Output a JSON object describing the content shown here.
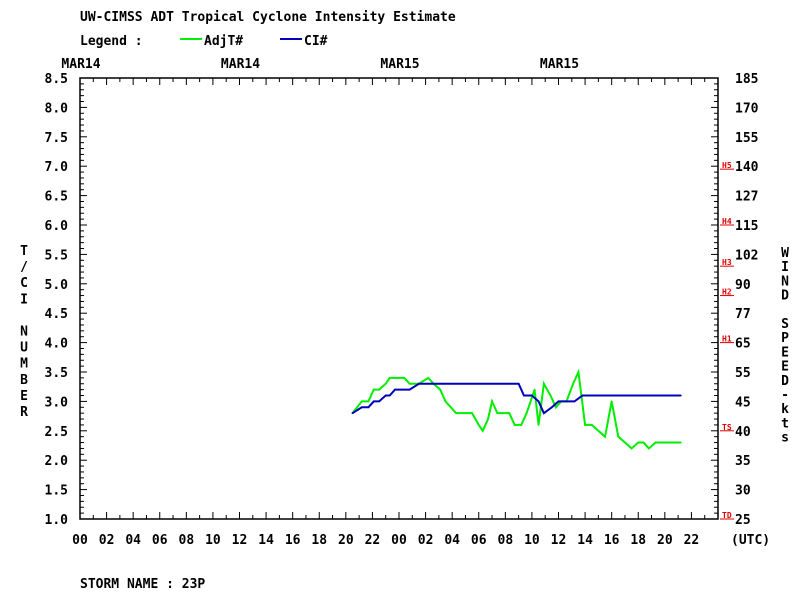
{
  "header": {
    "title": "UW-CIMSS ADT Tropical Cyclone Intensity Estimate",
    "legend_label": "Legend :",
    "storm_name": "STORM NAME : 23P"
  },
  "colors": {
    "adjt": "#00ee00",
    "ci": "#0000bb",
    "scale_marker": "#dd0000",
    "axis": "#000000"
  },
  "chart_data": {
    "type": "line",
    "title": "UW-CIMSS ADT Tropical Cyclone Intensity Estimate",
    "date_labels": [
      {
        "label": "MAR14",
        "hour": 0
      },
      {
        "label": "MAR14",
        "hour": 12
      },
      {
        "label": "MAR15",
        "hour": 24
      },
      {
        "label": "MAR15",
        "hour": 36
      }
    ],
    "x_tick_labels": [
      "00",
      "02",
      "04",
      "06",
      "08",
      "10",
      "12",
      "14",
      "16",
      "18",
      "20",
      "22",
      "00",
      "02",
      "04",
      "06",
      "08",
      "10",
      "12",
      "14",
      "16",
      "18",
      "20",
      "22"
    ],
    "x_unit_label": "(UTC)",
    "xlim": [
      0,
      48
    ],
    "ylabel_left": "T/CI NUMBER",
    "ylabel_right": "WIND SPEED-kts",
    "y_left_ticks": [
      "1.0",
      "1.5",
      "2.0",
      "2.5",
      "3.0",
      "3.5",
      "4.0",
      "4.5",
      "5.0",
      "5.5",
      "6.0",
      "6.5",
      "7.0",
      "7.5",
      "8.0",
      "8.5"
    ],
    "y_right_ticks": [
      "25",
      "30",
      "35",
      "40",
      "45",
      "55",
      "65",
      "77",
      "90",
      "102",
      "115",
      "127",
      "140",
      "155",
      "170",
      "185"
    ],
    "ylim": [
      1.0,
      8.5
    ],
    "scale_markers": [
      {
        "label": "TD",
        "y": 1.0
      },
      {
        "label": "TS",
        "y": 2.5
      },
      {
        "label": "H1",
        "y": 4.0
      },
      {
        "label": "H2",
        "y": 4.8
      },
      {
        "label": "H3",
        "y": 5.3
      },
      {
        "label": "H4",
        "y": 6.0
      },
      {
        "label": "H5",
        "y": 6.95
      }
    ],
    "series": [
      {
        "name": "AdjT#",
        "x": [
          20.5,
          21.2,
          21.7,
          22.1,
          22.5,
          23.0,
          23.3,
          23.7,
          24.0,
          24.4,
          24.8,
          25.5,
          26.2,
          26.6,
          27.1,
          27.5,
          28.3,
          28.8,
          29.1,
          29.5,
          30.0,
          30.3,
          30.7,
          31.0,
          31.4,
          31.8,
          32.3,
          32.7,
          33.2,
          33.6,
          34.2,
          34.5,
          34.9,
          35.4,
          35.8,
          36.2,
          36.6,
          37.1,
          37.5,
          38.0,
          38.5,
          39.0,
          39.5,
          40.0,
          40.5,
          41.0,
          41.5,
          42.0,
          42.4,
          42.8,
          43.3,
          43.7,
          44.0,
          44.5,
          44.9,
          45.2
        ],
        "values": [
          2.8,
          3.0,
          3.0,
          3.2,
          3.2,
          3.3,
          3.4,
          3.4,
          3.4,
          3.4,
          3.3,
          3.3,
          3.4,
          3.3,
          3.2,
          3.0,
          2.8,
          2.8,
          2.8,
          2.8,
          2.6,
          2.5,
          2.7,
          3.0,
          2.8,
          2.8,
          2.8,
          2.6,
          2.6,
          2.8,
          3.2,
          2.6,
          3.3,
          3.1,
          2.9,
          3.0,
          3.0,
          3.3,
          3.5,
          2.6,
          2.6,
          2.5,
          2.4,
          3.0,
          2.4,
          2.3,
          2.2,
          2.3,
          2.3,
          2.2,
          2.3,
          2.3,
          2.3,
          2.3,
          2.3,
          2.3
        ]
      },
      {
        "name": "CI#",
        "x": [
          20.5,
          21.2,
          21.7,
          22.1,
          22.5,
          23.0,
          23.3,
          23.7,
          24.0,
          24.4,
          24.8,
          25.5,
          26.2,
          27.0,
          28.0,
          29.0,
          30.0,
          31.0,
          32.0,
          33.0,
          33.4,
          34.0,
          34.5,
          34.9,
          35.5,
          36.0,
          36.6,
          37.2,
          37.8,
          38.5,
          40.0,
          41.0,
          42.0,
          43.0,
          44.0,
          45.2
        ],
        "values": [
          2.8,
          2.9,
          2.9,
          3.0,
          3.0,
          3.1,
          3.1,
          3.2,
          3.2,
          3.2,
          3.2,
          3.3,
          3.3,
          3.3,
          3.3,
          3.3,
          3.3,
          3.3,
          3.3,
          3.3,
          3.1,
          3.1,
          3.0,
          2.8,
          2.9,
          3.0,
          3.0,
          3.0,
          3.1,
          3.1,
          3.1,
          3.1,
          3.1,
          3.1,
          3.1,
          3.1
        ]
      }
    ],
    "grid": false,
    "legend_position": "top-left"
  }
}
